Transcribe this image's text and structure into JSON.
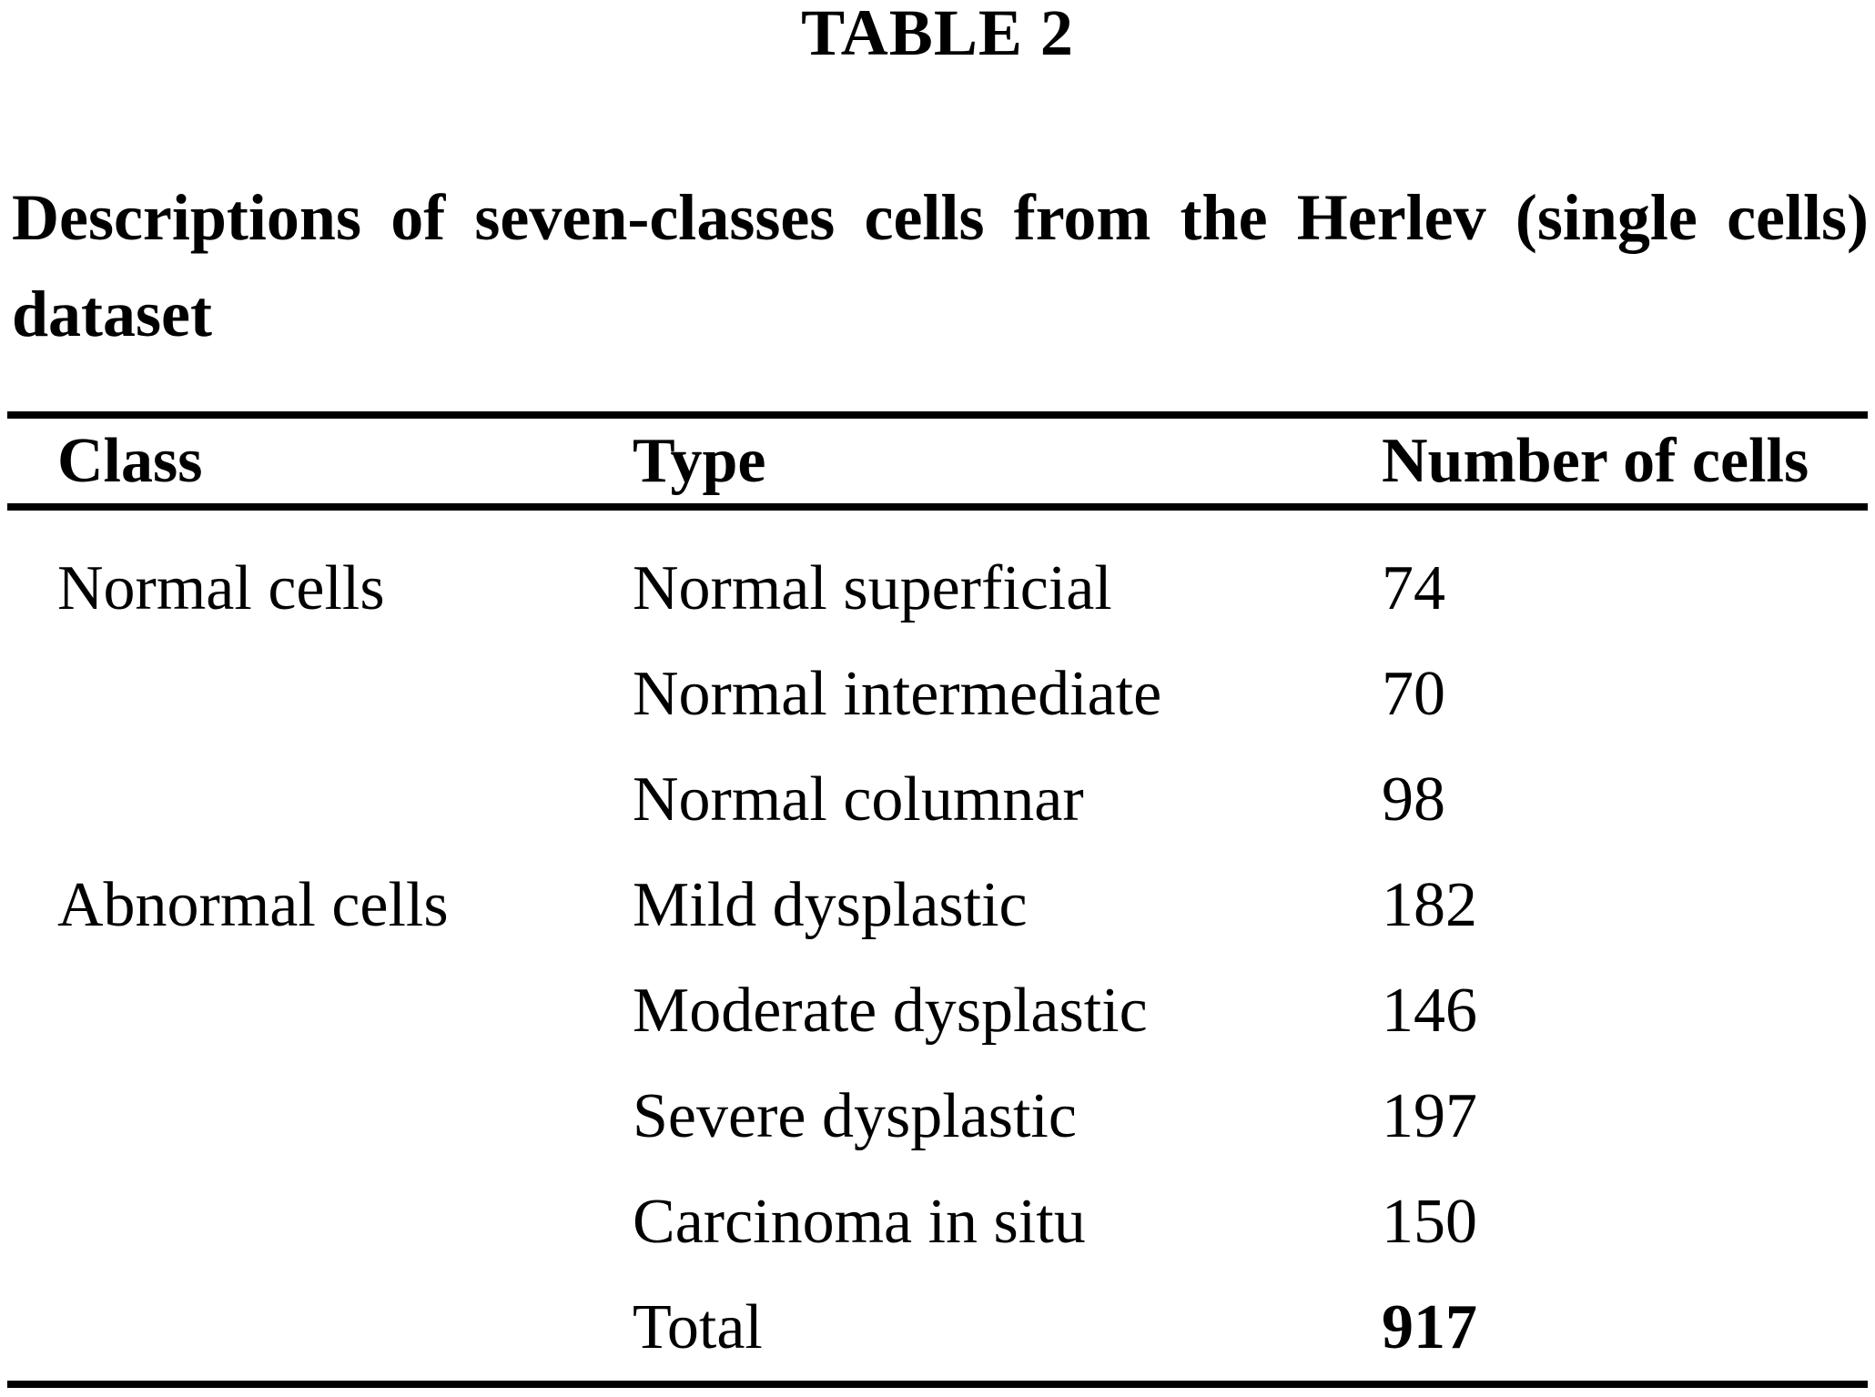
{
  "table_label": "TABLE 2",
  "caption": {
    "line1": "Descriptions of seven-classes cells from the Herlev (single cells)",
    "line2": "dataset"
  },
  "table": {
    "headers": {
      "class": "Class",
      "type": "Type",
      "count": "Number of cells"
    },
    "rows": [
      {
        "class": "Normal cells",
        "type": "Normal superficial",
        "count": "74"
      },
      {
        "class": "",
        "type": "Normal intermediate",
        "count": "70"
      },
      {
        "class": "",
        "type": "Normal columnar",
        "count": "98"
      },
      {
        "class": "Abnormal cells",
        "type": "Mild dysplastic",
        "count": "182"
      },
      {
        "class": "",
        "type": "Moderate dysplastic",
        "count": "146"
      },
      {
        "class": "",
        "type": "Severe dysplastic",
        "count": "197"
      },
      {
        "class": "",
        "type": "Carcinoma in situ",
        "count": "150"
      },
      {
        "class": "",
        "type": "Total",
        "count": "917"
      }
    ]
  },
  "colors": {
    "background": "#ffffff",
    "text": "#000000",
    "rule": "#000000"
  }
}
